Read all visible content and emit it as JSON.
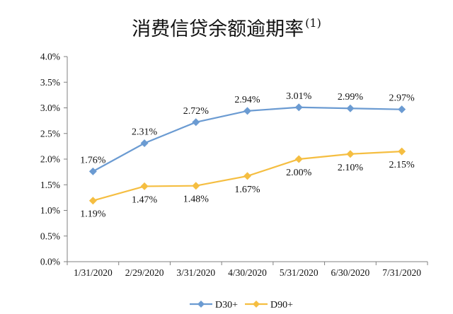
{
  "chart_data": {
    "type": "line",
    "title": "消费信贷余额逾期率",
    "title_superscript": "(1)",
    "categories": [
      "1/31/2020",
      "2/29/2020",
      "3/31/2020",
      "4/30/2020",
      "5/31/2020",
      "6/30/2020",
      "7/31/2020"
    ],
    "series": [
      {
        "name": "D30+",
        "color": "#6B9BD2",
        "values": [
          1.76,
          2.31,
          2.72,
          2.94,
          3.01,
          2.99,
          2.97
        ],
        "labels": [
          "1.76%",
          "2.31%",
          "2.72%",
          "2.94%",
          "3.01%",
          "2.99%",
          "2.97%"
        ],
        "label_position": "above"
      },
      {
        "name": "D90+",
        "color": "#F5BE41",
        "values": [
          1.19,
          1.47,
          1.48,
          1.67,
          2.0,
          2.1,
          2.15
        ],
        "labels": [
          "1.19%",
          "1.47%",
          "1.48%",
          "1.67%",
          "2.00%",
          "2.10%",
          "2.15%"
        ],
        "label_position": "below"
      }
    ],
    "ylim": [
      0,
      4.0
    ],
    "yticks": [
      "0.0%",
      "0.5%",
      "1.0%",
      "1.5%",
      "2.0%",
      "2.5%",
      "3.0%",
      "3.5%",
      "4.0%"
    ],
    "ytick_values": [
      0,
      0.5,
      1.0,
      1.5,
      2.0,
      2.5,
      3.0,
      3.5,
      4.0
    ],
    "grid": false,
    "legend_position": "bottom",
    "marker": "diamond"
  }
}
